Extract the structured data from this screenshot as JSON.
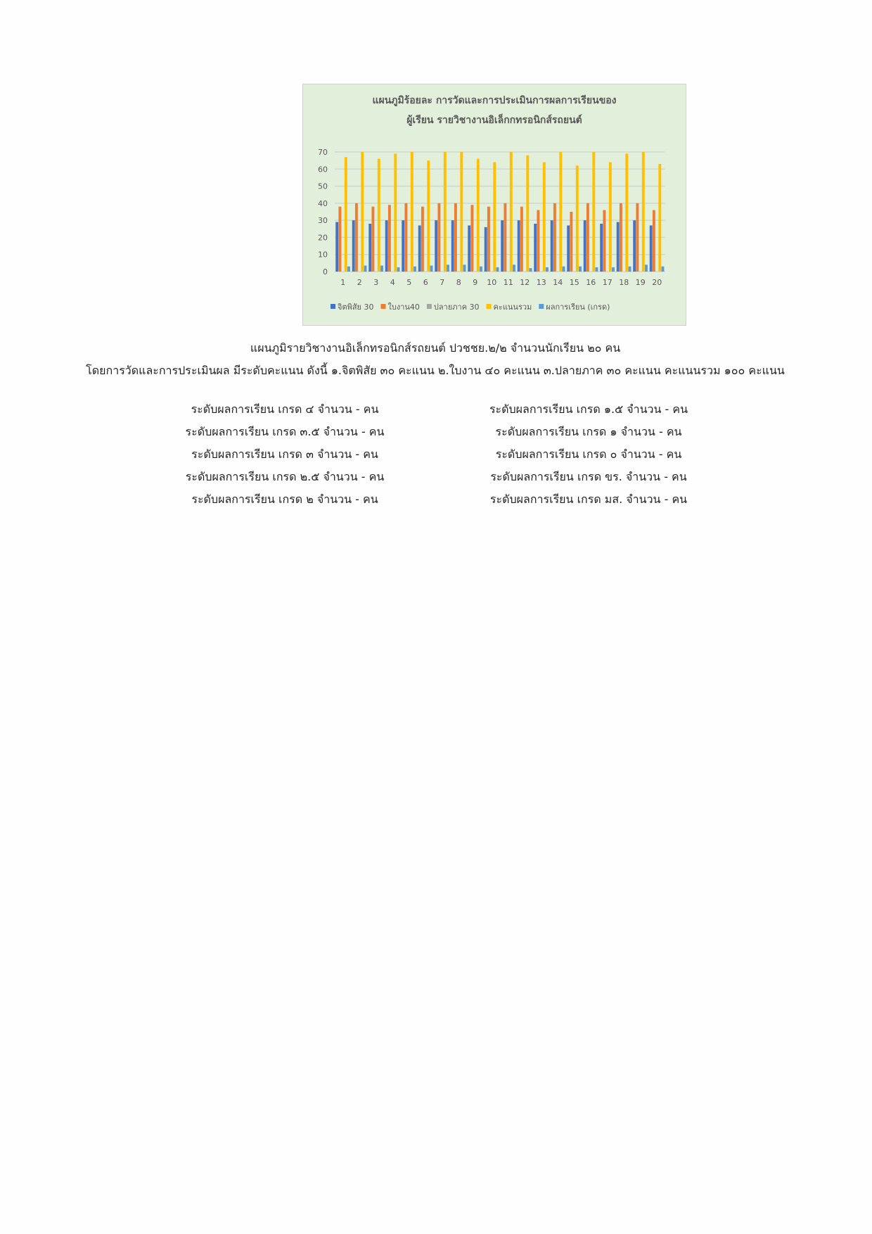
{
  "chart_data": {
    "type": "bar",
    "title": [
      "แผนภูมิร้อยละ การวัดและการประเมินการผลการเรียนของ",
      "ผู้เรียน  รายวิชางานอิเล็กกทรอนิกส์รถยนต์"
    ],
    "categories": [
      "1",
      "2",
      "3",
      "4",
      "5",
      "6",
      "7",
      "8",
      "9",
      "10",
      "11",
      "12",
      "13",
      "14",
      "15",
      "16",
      "17",
      "18",
      "19",
      "20"
    ],
    "ylim": [
      0,
      70
    ],
    "yticks": [
      0,
      10,
      20,
      30,
      40,
      50,
      60,
      70
    ],
    "grid": true,
    "legend_position": "bottom",
    "background": "#e2efda",
    "series": [
      {
        "name": "จิตพิสัย 30",
        "color": "#4472c4",
        "values": [
          29,
          30,
          28,
          30,
          30,
          27,
          30,
          30,
          27,
          26,
          30,
          30,
          28,
          30,
          27,
          30,
          28,
          29,
          30,
          27
        ]
      },
      {
        "name": "ใบงาน40",
        "color": "#ed7d31",
        "values": [
          38,
          40,
          38,
          39,
          40,
          38,
          40,
          40,
          39,
          38,
          40,
          38,
          36,
          40,
          35,
          40,
          36,
          40,
          40,
          36
        ]
      },
      {
        "name": "ปลายภาค 30",
        "color": "#a5a5a5",
        "values": [
          0,
          0,
          0,
          0,
          0,
          0,
          0,
          0,
          0,
          0,
          0,
          0,
          0,
          0,
          0,
          0,
          0,
          0,
          0,
          0
        ]
      },
      {
        "name": "คะแนนรวม",
        "color": "#ffc000",
        "values": [
          67,
          70,
          66,
          69,
          70,
          65,
          70,
          70,
          66,
          64,
          70,
          68,
          64,
          70,
          62,
          70,
          64,
          69,
          70,
          63
        ]
      },
      {
        "name": "ผลการเรียน (เกรด)",
        "color": "#5b9bd5",
        "values": [
          3,
          3.5,
          3.5,
          2.5,
          3,
          3.5,
          4,
          4,
          3,
          2.5,
          4,
          2,
          2.5,
          3,
          3,
          2.5,
          2.5,
          3,
          4,
          3
        ]
      }
    ]
  },
  "caption": {
    "line1": "แผนภูมิรายวิชางานอิเล็กทรอนิกส์รถยนต์ ปวชชย.๒/๒ จำนวนนักเรียน ๒๐ คน",
    "line2": "โดยการวัดและการประเมินผล มีระดับคะแนน ดังนี้ ๑.จิตพิสัย ๓๐ คะแนน ๒.ใบงาน ๔๐ คะแนน ๓.ปลายภาค ๓๐ คะแนน คะแนนรวม ๑๐๐ คะแนน"
  },
  "grades": {
    "left": [
      "ระดับผลการเรียน เกรด ๔ จำนวน - คน",
      "ระดับผลการเรียน เกรด ๓.๕ จำนวน - คน",
      "ระดับผลการเรียน เกรด ๓ จำนวน - คน",
      "ระดับผลการเรียน เกรด ๒.๕ จำนวน - คน",
      "ระดับผลการเรียน เกรด ๒ จำนวน - คน"
    ],
    "right": [
      "ระดับผลการเรียน เกรด ๑.๕ จำนวน - คน",
      "ระดับผลการเรียน เกรด ๑ จำนวน - คน",
      "ระดับผลการเรียน เกรด ๐ จำนวน - คน",
      "ระดับผลการเรียน เกรด ขร. จำนวน - คน",
      "ระดับผลการเรียน เกรด มส. จำนวน - คน"
    ]
  }
}
